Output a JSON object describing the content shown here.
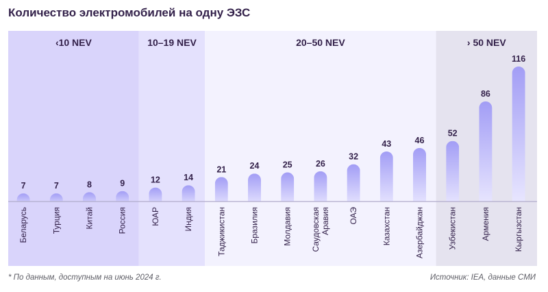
{
  "title": "Количество электромобилей на одну ЭЗС",
  "footnote": "* По данным, доступным на июнь 2024 г.",
  "source": "Источник: IEA, данные СМИ",
  "colors": {
    "bar_top": "#a29df5",
    "bar_bottom": "#ebe9ff",
    "group_a": "#d9d4fb",
    "group_b": "#e4e1fd",
    "group_c": "#f3f2fe",
    "group_d": "#e5e3ef",
    "baseline": "#b2adcc",
    "value_text": "#33214a",
    "label_text": "#33214a"
  },
  "chart_data": {
    "type": "bar",
    "title": "Количество электромобилей на одну ЭЗС",
    "xlabel": "",
    "ylabel": "",
    "ylim": [
      0,
      116
    ],
    "grid": false,
    "legend": "none",
    "categories": [
      "Беларусь",
      "Турция",
      "Китай",
      "Россия",
      "ЮАР",
      "Индия",
      "Таджикистан",
      "Бразилия",
      "Молдавия",
      "Саудовская Аравия",
      "ОАЭ",
      "Казахстан",
      "Азербайджан",
      "Узбекистан",
      "Армения",
      "Кыргызстан"
    ],
    "values": [
      7,
      7,
      8,
      9,
      12,
      14,
      21,
      24,
      25,
      26,
      32,
      43,
      46,
      52,
      86,
      116
    ],
    "groups": [
      {
        "label": "‹10 NEV",
        "from": 0,
        "to": 3
      },
      {
        "label": "10–19 NEV",
        "from": 4,
        "to": 5
      },
      {
        "label": "20–50 NEV",
        "from": 6,
        "to": 12
      },
      {
        "label": "› 50 NEV",
        "from": 13,
        "to": 15
      }
    ]
  }
}
